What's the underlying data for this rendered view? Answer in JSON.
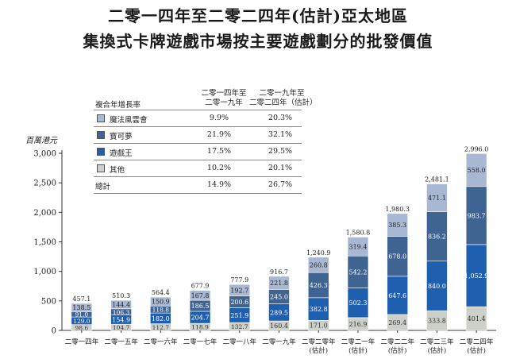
{
  "title_line1": "二零一四年至二零二四年(估計)亞太地區",
  "title_line2": "集換式卡牌遊戲市場按主要遊戲劃分的批發價值",
  "legend": {
    "header_label": "複合年增長率",
    "col1_line1": "二零一四年至",
    "col1_line2": "二零一九年",
    "col2_line1": "二零一九年至",
    "col2_line2": "二零二四年（估計）",
    "rows": [
      {
        "name": "魔法風雲會",
        "cagr1": "9.9%",
        "cagr2": "20.3%"
      },
      {
        "name": "寶可夢",
        "cagr1": "21.9%",
        "cagr2": "32.1%"
      },
      {
        "name": "遊戲王",
        "cagr1": "17.5%",
        "cagr2": "29.5%"
      },
      {
        "name": "其他",
        "cagr1": "10.2%",
        "cagr2": "20.1%"
      }
    ],
    "total": {
      "name": "總計",
      "cagr1": "14.9%",
      "cagr2": "26.7%"
    }
  },
  "chart_data": {
    "type": "bar",
    "stacked": true,
    "ylabel": "百萬港元",
    "ylim": [
      0,
      3000
    ],
    "yticks": [
      "0",
      "500",
      "1,000",
      "1,500",
      "2,000",
      "2,500",
      "3,000"
    ],
    "categories": [
      [
        "二零一四年"
      ],
      [
        "二零一五年"
      ],
      [
        "二零一六年"
      ],
      [
        "二零一七年"
      ],
      [
        "二零一八年"
      ],
      [
        "二零一九年"
      ],
      [
        "二零二零年",
        "(估計)"
      ],
      [
        "二零二一年",
        "(估計)"
      ],
      [
        "二零二二年",
        "(估計)"
      ],
      [
        "二零二三年",
        "(估計)"
      ],
      [
        "二零二四年",
        "(估計)"
      ]
    ],
    "series": [
      {
        "name": "其他",
        "color": "#cdd0c8",
        "values": [
          98.6,
          104.7,
          112.7,
          118.9,
          132.7,
          160.4,
          171.0,
          216.9,
          269.4,
          333.8,
          401.4
        ]
      },
      {
        "name": "遊戲王",
        "color": "#1f5fb0",
        "values": [
          129.0,
          154.9,
          182.0,
          204.7,
          251.9,
          289.5,
          382.8,
          502.3,
          647.6,
          840.0,
          1052.9
        ]
      },
      {
        "name": "寶可夢",
        "color": "#3f6491",
        "values": [
          91.0,
          106.3,
          118.8,
          186.5,
          200.6,
          245.0,
          426.3,
          542.2,
          678.0,
          836.2,
          983.7
        ]
      },
      {
        "name": "魔法風雲會",
        "color": "#a9b8d2",
        "values": [
          138.5,
          144.4,
          150.9,
          167.8,
          192.7,
          221.8,
          260.8,
          319.4,
          385.3,
          471.1,
          558.0
        ]
      }
    ],
    "value_labels": [
      [
        "98.6",
        "104.7",
        "112.7",
        "118.9",
        "132.7",
        "160.4",
        "171.0",
        "216.9",
        "269.4",
        "333.8",
        "401.4"
      ],
      [
        "129.0",
        "154.9",
        "182.0",
        "204.7",
        "251.9",
        "289.5",
        "382.8",
        "502.3",
        "647.6",
        "840.0",
        "1,052.9"
      ],
      [
        "91.0",
        "106.3",
        "118.8",
        "186.5",
        "200.6",
        "245.0",
        "426.3",
        "542.2",
        "678.0",
        "836.2",
        "983.7"
      ],
      [
        "138.5",
        "144.4",
        "150.9",
        "167.8",
        "192.7",
        "221.8",
        "260.8",
        "319.4",
        "385.3",
        "471.1",
        "558.0"
      ]
    ],
    "totals": [
      "457.1",
      "510.3",
      "564.4",
      "677.9",
      "777.9",
      "916.7",
      "1,240.9",
      "1,580.8",
      "1,980.3",
      "2,481.1",
      "2,996.0"
    ]
  }
}
